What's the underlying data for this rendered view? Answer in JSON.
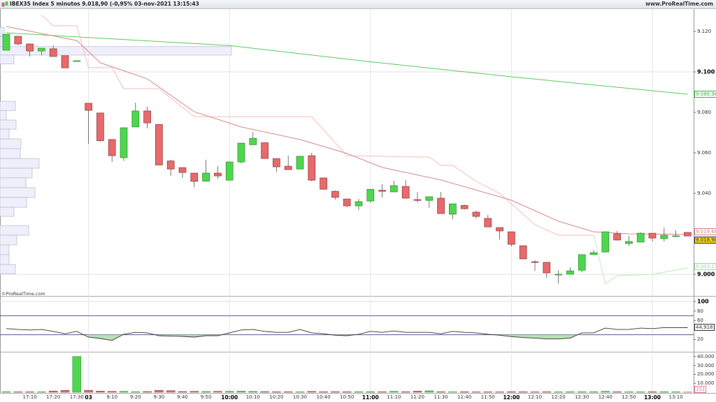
{
  "header": {
    "title": "IBEX35 Index 5 minutos 9.018,90 (-0,95% 03-nov-2021 13:15:43",
    "site": "www.ProRealTime.com",
    "app_icon": "candlestick-icon"
  },
  "copyright": "©ProRealTime.com",
  "colors": {
    "up": "#4fd64f",
    "down": "#e86a6a",
    "ma_long": "#5cc85c",
    "ma_short": "#d98888",
    "trail_stop_down": "#f7c8c8",
    "trail_stop_up": "#c5efc5",
    "oscillator": "#333333",
    "band_lines": "#5a5a90",
    "volume_profile": "#eeeffa"
  },
  "price_axis": {
    "labels": [
      {
        "value": 9120,
        "text": "9.120",
        "bold": false
      },
      {
        "value": 9100,
        "text": "9.100",
        "bold": true
      },
      {
        "value": 9080,
        "text": "9.080",
        "bold": false
      },
      {
        "value": 9060,
        "text": "9.060",
        "bold": false
      },
      {
        "value": 9040,
        "text": "9.040",
        "bold": false
      },
      {
        "value": 9000,
        "text": "9.000",
        "bold": true
      }
    ],
    "value_boxes": [
      {
        "value": 9088.98,
        "text": "9.088,98",
        "color": "#3cb43c",
        "bg": "#ffffff"
      },
      {
        "value": 9019.68,
        "text": "9.019,68",
        "color": "#d08080",
        "bg": "#ffffff"
      },
      {
        "value": 9018.9,
        "text": "9.018,90",
        "color": "#333333",
        "bg": "#f2d21a"
      },
      {
        "value": 9003.15,
        "text": "9.003,15",
        "color": "#9cd89c",
        "bg": "#ffffff"
      }
    ]
  },
  "oscillator_axis": {
    "labels": [
      {
        "value": 100,
        "text": "100",
        "bold": true
      },
      {
        "value": 80,
        "text": "80",
        "bold": false
      },
      {
        "value": 60,
        "text": "60",
        "bold": false
      },
      {
        "value": 20,
        "text": "20",
        "bold": false
      }
    ],
    "upper_band": 70,
    "lower_band": 30,
    "value_box": {
      "value": 44.918,
      "text": "44,918"
    }
  },
  "volume_axis": {
    "labels": [
      {
        "value": 40000,
        "text": "40.000"
      },
      {
        "value": 30000,
        "text": "30.000"
      },
      {
        "value": 20000,
        "text": "20.000"
      },
      {
        "value": 10000,
        "text": "10.000"
      }
    ],
    "value_box": {
      "value": 151,
      "text": "151"
    }
  },
  "time_axis": {
    "labels": [
      {
        "time": "17:10",
        "text": "17:10",
        "bold": false
      },
      {
        "time": "17:20",
        "text": "17:20",
        "bold": false
      },
      {
        "time": "17:30",
        "text": "17:30",
        "bold": false
      },
      {
        "time": "9:00",
        "text": "03",
        "bold": true
      },
      {
        "time": "9:10",
        "text": "9:10",
        "bold": false
      },
      {
        "time": "9:20",
        "text": "9:20",
        "bold": false
      },
      {
        "time": "9:30",
        "text": "9:30",
        "bold": false
      },
      {
        "time": "9:40",
        "text": "9:40",
        "bold": false
      },
      {
        "time": "9:50",
        "text": "9:50",
        "bold": false
      },
      {
        "time": "10:00",
        "text": "10:00",
        "bold": true
      },
      {
        "time": "10:10",
        "text": "10:10",
        "bold": false
      },
      {
        "time": "10:20",
        "text": "10:20",
        "bold": false
      },
      {
        "time": "10:30",
        "text": "10:30",
        "bold": false
      },
      {
        "time": "10:40",
        "text": "10:40",
        "bold": false
      },
      {
        "time": "10:50",
        "text": "10:50",
        "bold": false
      },
      {
        "time": "11:00",
        "text": "11:00",
        "bold": true
      },
      {
        "time": "11:10",
        "text": "11:10",
        "bold": false
      },
      {
        "time": "11:20",
        "text": "11:20",
        "bold": false
      },
      {
        "time": "11:30",
        "text": "11:30",
        "bold": false
      },
      {
        "time": "11:40",
        "text": "11:40",
        "bold": false
      },
      {
        "time": "11:50",
        "text": "11:50",
        "bold": false
      },
      {
        "time": "12:00",
        "text": "12:00",
        "bold": true
      },
      {
        "time": "12:10",
        "text": "12:10",
        "bold": false
      },
      {
        "time": "12:20",
        "text": "12:20",
        "bold": false
      },
      {
        "time": "12:30",
        "text": "12:30",
        "bold": false
      },
      {
        "time": "12:40",
        "text": "12:40",
        "bold": false
      },
      {
        "time": "12:50",
        "text": "12:50",
        "bold": false
      },
      {
        "time": "13:00",
        "text": "13:00",
        "bold": true
      },
      {
        "time": "13:10",
        "text": "13:10",
        "bold": false
      }
    ]
  },
  "chart_data": {
    "type": "candlestick",
    "ylim": [
      8990,
      9130
    ],
    "columns": [
      "time",
      "open",
      "high",
      "low",
      "close",
      "volume",
      "oscillator"
    ],
    "candles": [
      [
        "17:00",
        9110.7,
        9118.6,
        9110.7,
        9118.6,
        500,
        43
      ],
      [
        "17:05",
        9117.6,
        9117.6,
        9113.1,
        9113.8,
        400,
        41
      ],
      [
        "17:10",
        9113.8,
        9113.8,
        9107.6,
        9110.3,
        400,
        40
      ],
      [
        "17:15",
        9110.3,
        9111.7,
        9108.2,
        9111.7,
        400,
        41
      ],
      [
        "17:20",
        9111.4,
        9113.0,
        9107.6,
        9107.6,
        1300,
        37
      ],
      [
        "17:25",
        9108.0,
        9108.0,
        9102.0,
        9102.0,
        2100,
        32
      ],
      [
        "17:30",
        9105.5,
        9105.5,
        9105.5,
        9105.5,
        40000,
        37
      ],
      [
        "9:00",
        9084.5,
        9084.5,
        9064.5,
        9081.0,
        2200,
        25
      ],
      [
        "9:05",
        9079.7,
        9079.7,
        9065.5,
        9066.0,
        1300,
        22
      ],
      [
        "9:10",
        9066.6,
        9066.6,
        9055.5,
        9058.6,
        1000,
        18
      ],
      [
        "9:15",
        9057.6,
        9072.4,
        9056.0,
        9072.4,
        1000,
        31
      ],
      [
        "9:20",
        9072.8,
        9084.8,
        9072.8,
        9080.7,
        500,
        35
      ],
      [
        "9:25",
        9080.7,
        9082.8,
        9072.1,
        9074.8,
        800,
        34
      ],
      [
        "9:30",
        9074.0,
        9074.0,
        9054.0,
        9054.0,
        2200,
        28
      ],
      [
        "9:35",
        9056.0,
        9056.6,
        9048.6,
        9052.0,
        1800,
        27
      ],
      [
        "9:40",
        9052.7,
        9052.7,
        9047.6,
        9050.3,
        800,
        26.5
      ],
      [
        "9:45",
        9050.0,
        9050.0,
        9043.0,
        9045.9,
        1000,
        25
      ],
      [
        "9:50",
        9046.0,
        9056.6,
        9046.0,
        9050.0,
        800,
        28
      ],
      [
        "9:55",
        9050.0,
        9053.4,
        9047.2,
        9048.6,
        1000,
        28
      ],
      [
        "10:00",
        9046.5,
        9055.5,
        9046.5,
        9055.5,
        1000,
        34
      ],
      [
        "10:05",
        9055.5,
        9064.8,
        9054.8,
        9064.8,
        1200,
        40
      ],
      [
        "10:10",
        9064.0,
        9070.3,
        9064.0,
        9067.2,
        900,
        41
      ],
      [
        "10:15",
        9065.0,
        9065.0,
        9057.2,
        9057.2,
        700,
        37
      ],
      [
        "10:20",
        9057.2,
        9057.2,
        9050.7,
        9053.1,
        500,
        35
      ],
      [
        "10:25",
        9053.4,
        9058.6,
        9051.7,
        9051.7,
        500,
        35
      ],
      [
        "10:30",
        9052.0,
        9058.3,
        9052.0,
        9058.3,
        400,
        41
      ],
      [
        "10:35",
        9058.6,
        9060.0,
        9045.9,
        9046.5,
        900,
        34
      ],
      [
        "10:40",
        9047.6,
        9047.6,
        9042.0,
        9042.0,
        500,
        32
      ],
      [
        "10:45",
        9041.0,
        9041.4,
        9036.9,
        9038.0,
        600,
        29
      ],
      [
        "10:50",
        9037.2,
        9037.2,
        9033.1,
        9033.8,
        500,
        28
      ],
      [
        "10:55",
        9033.8,
        9037.2,
        9031.7,
        9035.9,
        500,
        31
      ],
      [
        "11:00",
        9036.2,
        9042.0,
        9035.5,
        9042.0,
        600,
        37
      ],
      [
        "11:05",
        9041.5,
        9044.5,
        9037.9,
        9041.0,
        500,
        35
      ],
      [
        "11:10",
        9040.7,
        9046.2,
        9040.7,
        9043.8,
        1000,
        38
      ],
      [
        "11:15",
        9043.4,
        9046.5,
        9037.6,
        9037.6,
        500,
        35
      ],
      [
        "11:20",
        9036.9,
        9040.7,
        9035.5,
        9036.5,
        1200,
        35
      ],
      [
        "11:25",
        9036.5,
        9038.3,
        9032.8,
        9038.3,
        1600,
        35
      ],
      [
        "11:30",
        9037.6,
        9040.7,
        9030.0,
        9030.0,
        500,
        32
      ],
      [
        "11:35",
        9029.7,
        9034.8,
        9027.2,
        9034.8,
        400,
        37
      ],
      [
        "11:40",
        9034.0,
        9034.5,
        9032.0,
        9032.4,
        500,
        35
      ],
      [
        "11:45",
        9030.7,
        9031.4,
        9027.6,
        9028.6,
        400,
        34
      ],
      [
        "11:50",
        9027.6,
        9029.3,
        9023.4,
        9023.4,
        400,
        31
      ],
      [
        "11:55",
        9023.1,
        9023.1,
        9017.2,
        9021.4,
        400,
        29
      ],
      [
        "12:00",
        9021.0,
        9021.0,
        9013.8,
        9014.8,
        600,
        26
      ],
      [
        "12:05",
        9014.1,
        9014.1,
        9007.6,
        9007.6,
        500,
        24
      ],
      [
        "12:10",
        9006.2,
        9006.9,
        9001.7,
        9006.0,
        400,
        23
      ],
      [
        "12:15",
        9005.9,
        9005.9,
        8998.3,
        9000.7,
        500,
        21
      ],
      [
        "12:20",
        9000.0,
        9002.0,
        8995.5,
        9000.0,
        400,
        21
      ],
      [
        "12:25",
        9000.0,
        9003.4,
        9000.0,
        9001.7,
        500,
        23
      ],
      [
        "12:30",
        9002.0,
        9009.7,
        9001.0,
        9009.7,
        500,
        34
      ],
      [
        "12:35",
        9009.7,
        9012.0,
        9009.7,
        9010.7,
        500,
        34
      ],
      [
        "12:40",
        9011.0,
        9021.0,
        9011.0,
        9021.0,
        1000,
        44
      ],
      [
        "12:45",
        9020.0,
        9021.4,
        9016.9,
        9016.9,
        500,
        41
      ],
      [
        "12:50",
        9015.2,
        9019.0,
        9014.1,
        9016.2,
        400,
        41
      ],
      [
        "12:55",
        9015.9,
        9020.7,
        9015.9,
        9020.3,
        400,
        44
      ],
      [
        "13:00",
        9020.3,
        9020.3,
        9016.2,
        9017.9,
        500,
        43
      ],
      [
        "13:05",
        9017.6,
        9023.1,
        9016.2,
        9019.3,
        500,
        45
      ],
      [
        "13:10",
        9019.0,
        9021.7,
        9018.3,
        9019.0,
        400,
        45
      ],
      [
        "13:15",
        9020.7,
        9020.7,
        9018.9,
        9018.9,
        151,
        44.918
      ]
    ],
    "ma_long": [
      [
        "17:00",
        9119.3
      ],
      [
        "10:00",
        9113.0
      ],
      [
        "11:00",
        9105.0
      ],
      [
        "12:00",
        9097.6
      ],
      [
        "13:15",
        9088.98
      ]
    ],
    "ma_short": [
      [
        "17:00",
        9122.4
      ],
      [
        "17:30",
        9115.5
      ],
      [
        "9:05",
        9104.5
      ],
      [
        "9:25",
        9096.6
      ],
      [
        "9:45",
        9080.3
      ],
      [
        "10:05",
        9072.8
      ],
      [
        "10:30",
        9066.6
      ],
      [
        "10:50",
        9059.7
      ],
      [
        "11:05",
        9052.8
      ],
      [
        "11:30",
        9046.6
      ],
      [
        "12:00",
        9036.6
      ],
      [
        "12:20",
        9026.2
      ],
      [
        "12:35",
        9021.0
      ],
      [
        "12:50",
        9020.0
      ],
      [
        "13:15",
        9019.68
      ]
    ],
    "trailing_stop_down": [
      [
        "17:15",
        9128.0
      ],
      [
        "17:20",
        9122.8
      ],
      [
        "17:30",
        9122.8
      ],
      [
        "9:00",
        9102.1
      ],
      [
        "9:10",
        9102.1
      ],
      [
        "9:15",
        9091.7
      ],
      [
        "9:30",
        9091.7
      ],
      [
        "9:45",
        9077.9
      ],
      [
        "10:35",
        9077.9
      ],
      [
        "10:50",
        9058.6
      ],
      [
        "11:25",
        9057.9
      ],
      [
        "11:30",
        9053.8
      ],
      [
        "11:35",
        9053.8
      ],
      [
        "11:45",
        9045.9
      ],
      [
        "11:55",
        9040.0
      ],
      [
        "12:10",
        9024.5
      ],
      [
        "12:20",
        9019.3
      ],
      [
        "12:35",
        9019.3
      ]
    ],
    "trailing_stop_up": [
      [
        "12:35",
        9019.3
      ],
      [
        "12:40",
        8995.2
      ],
      [
        "12:45",
        8999.3
      ],
      [
        "13:00",
        9000.0
      ],
      [
        "13:15",
        9003.15
      ]
    ],
    "volume_profile": [
      {
        "from": 9122.0,
        "to": 9117.4,
        "size": 6
      },
      {
        "from": 9117.4,
        "to": 9112.5,
        "size": 7
      },
      {
        "from": 9112.5,
        "to": 9108.3,
        "size": 331
      },
      {
        "from": 9108.3,
        "to": 9103.9,
        "size": 20
      },
      {
        "from": 9085.5,
        "to": 9080.9,
        "size": 22
      },
      {
        "from": 9080.9,
        "to": 9076.2,
        "size": 9
      },
      {
        "from": 9076.2,
        "to": 9071.7,
        "size": 23
      },
      {
        "from": 9071.7,
        "to": 9066.9,
        "size": 13
      },
      {
        "from": 9066.9,
        "to": 9062.1,
        "size": 30
      },
      {
        "from": 9062.1,
        "to": 9057.2,
        "size": 29
      },
      {
        "from": 9057.2,
        "to": 9052.4,
        "size": 56
      },
      {
        "from": 9052.4,
        "to": 9047.6,
        "size": 46
      },
      {
        "from": 9047.6,
        "to": 9042.8,
        "size": 37
      },
      {
        "from": 9042.8,
        "to": 9037.9,
        "size": 50
      },
      {
        "from": 9037.9,
        "to": 9033.1,
        "size": 38
      },
      {
        "from": 9033.1,
        "to": 9028.6,
        "size": 20
      },
      {
        "from": 9024.1,
        "to": 9019.3,
        "size": 41
      },
      {
        "from": 9019.3,
        "to": 9014.5,
        "size": 24
      },
      {
        "from": 9014.5,
        "to": 9009.7,
        "size": 13
      },
      {
        "from": 9009.7,
        "to": 9004.8,
        "size": 13
      },
      {
        "from": 9004.8,
        "to": 9000.3,
        "size": 22
      }
    ]
  }
}
